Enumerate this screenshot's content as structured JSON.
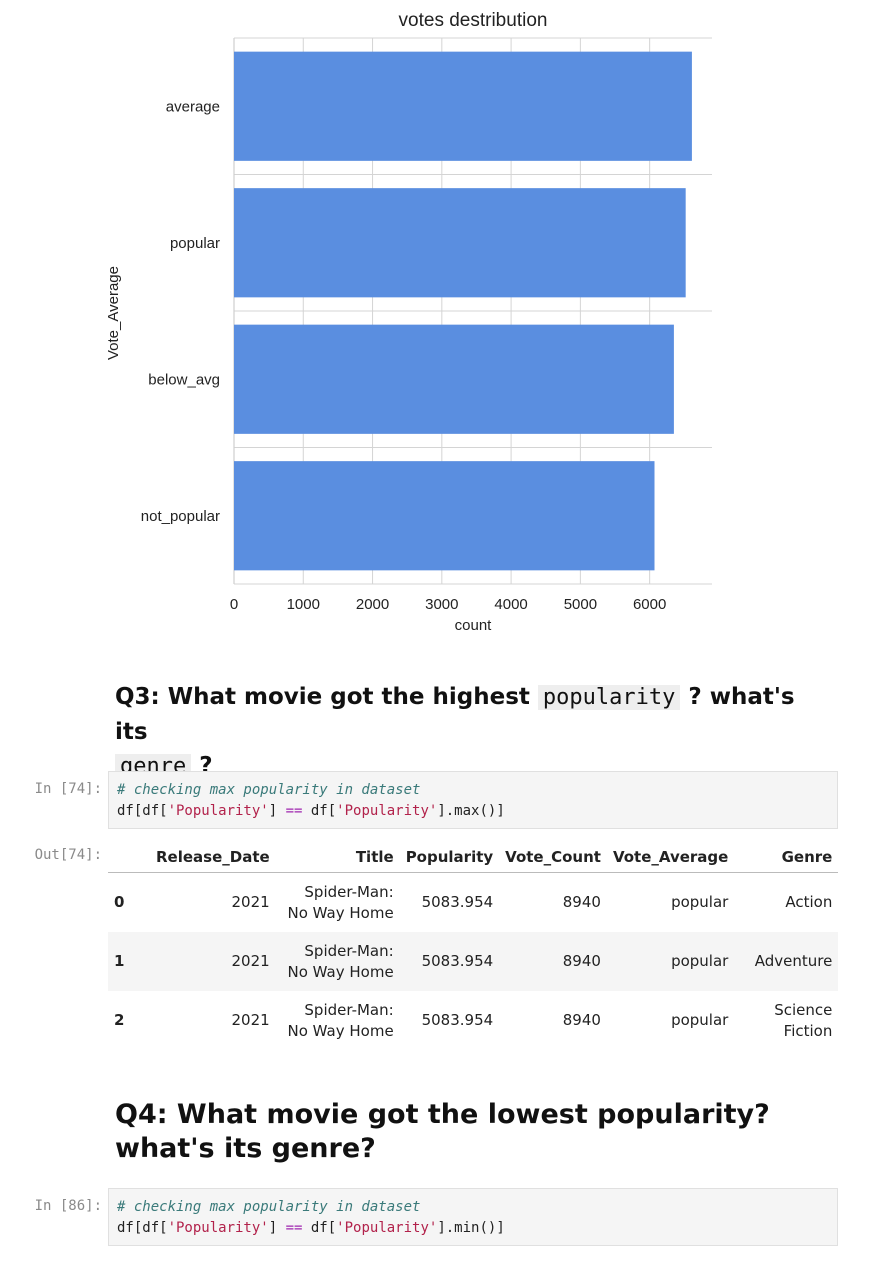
{
  "chart_data": {
    "type": "bar",
    "orientation": "horizontal",
    "title": "votes destribution",
    "xlabel": "count",
    "ylabel": "Vote_Average",
    "categories": [
      "average",
      "popular",
      "below_avg",
      "not_popular"
    ],
    "values": [
      6610,
      6520,
      6350,
      6070
    ],
    "xlim": [
      0,
      6900
    ],
    "xticks": [
      0,
      1000,
      2000,
      3000,
      4000,
      5000,
      6000
    ],
    "grid": true,
    "bar_color": "#5a8ee0"
  },
  "q3": {
    "part1": "Q3: What movie got the highest ",
    "code1": "popularity",
    "part2": " ? what's its",
    "code2": "genre",
    "part3": " ?"
  },
  "cell74": {
    "prompt": "In [74]:",
    "comment": "# checking max popularity in dataset",
    "line2": {
      "a": "df[df[",
      "s1": "'Popularity'",
      "b": "] ",
      "op": "==",
      "c": " df[",
      "s2": "'Popularity'",
      "d": "].max()]"
    }
  },
  "out74": {
    "prompt": "Out[74]:",
    "columns": [
      "",
      "Release_Date",
      "Title",
      "Popularity",
      "Vote_Count",
      "Vote_Average",
      "Genre"
    ],
    "rows": [
      {
        "idx": "0",
        "date": "2021",
        "title1": "Spider-Man:",
        "title2": "No Way Home",
        "pop": "5083.954",
        "vc": "8940",
        "va": "popular",
        "genre1": "Action",
        "genre2": ""
      },
      {
        "idx": "1",
        "date": "2021",
        "title1": "Spider-Man:",
        "title2": "No Way Home",
        "pop": "5083.954",
        "vc": "8940",
        "va": "popular",
        "genre1": "Adventure",
        "genre2": ""
      },
      {
        "idx": "2",
        "date": "2021",
        "title1": "Spider-Man:",
        "title2": "No Way Home",
        "pop": "5083.954",
        "vc": "8940",
        "va": "popular",
        "genre1": "Science",
        "genre2": "Fiction"
      }
    ]
  },
  "q4": {
    "text": "Q4: What movie got the lowest popularity? what's its genre?"
  },
  "cell86": {
    "prompt": "In [86]:",
    "comment": "# checking max popularity in dataset",
    "line2": {
      "a": "df[df[",
      "s1": "'Popularity'",
      "b": "] ",
      "op": "==",
      "c": " df[",
      "s2": "'Popularity'",
      "d": "].min()]"
    }
  }
}
